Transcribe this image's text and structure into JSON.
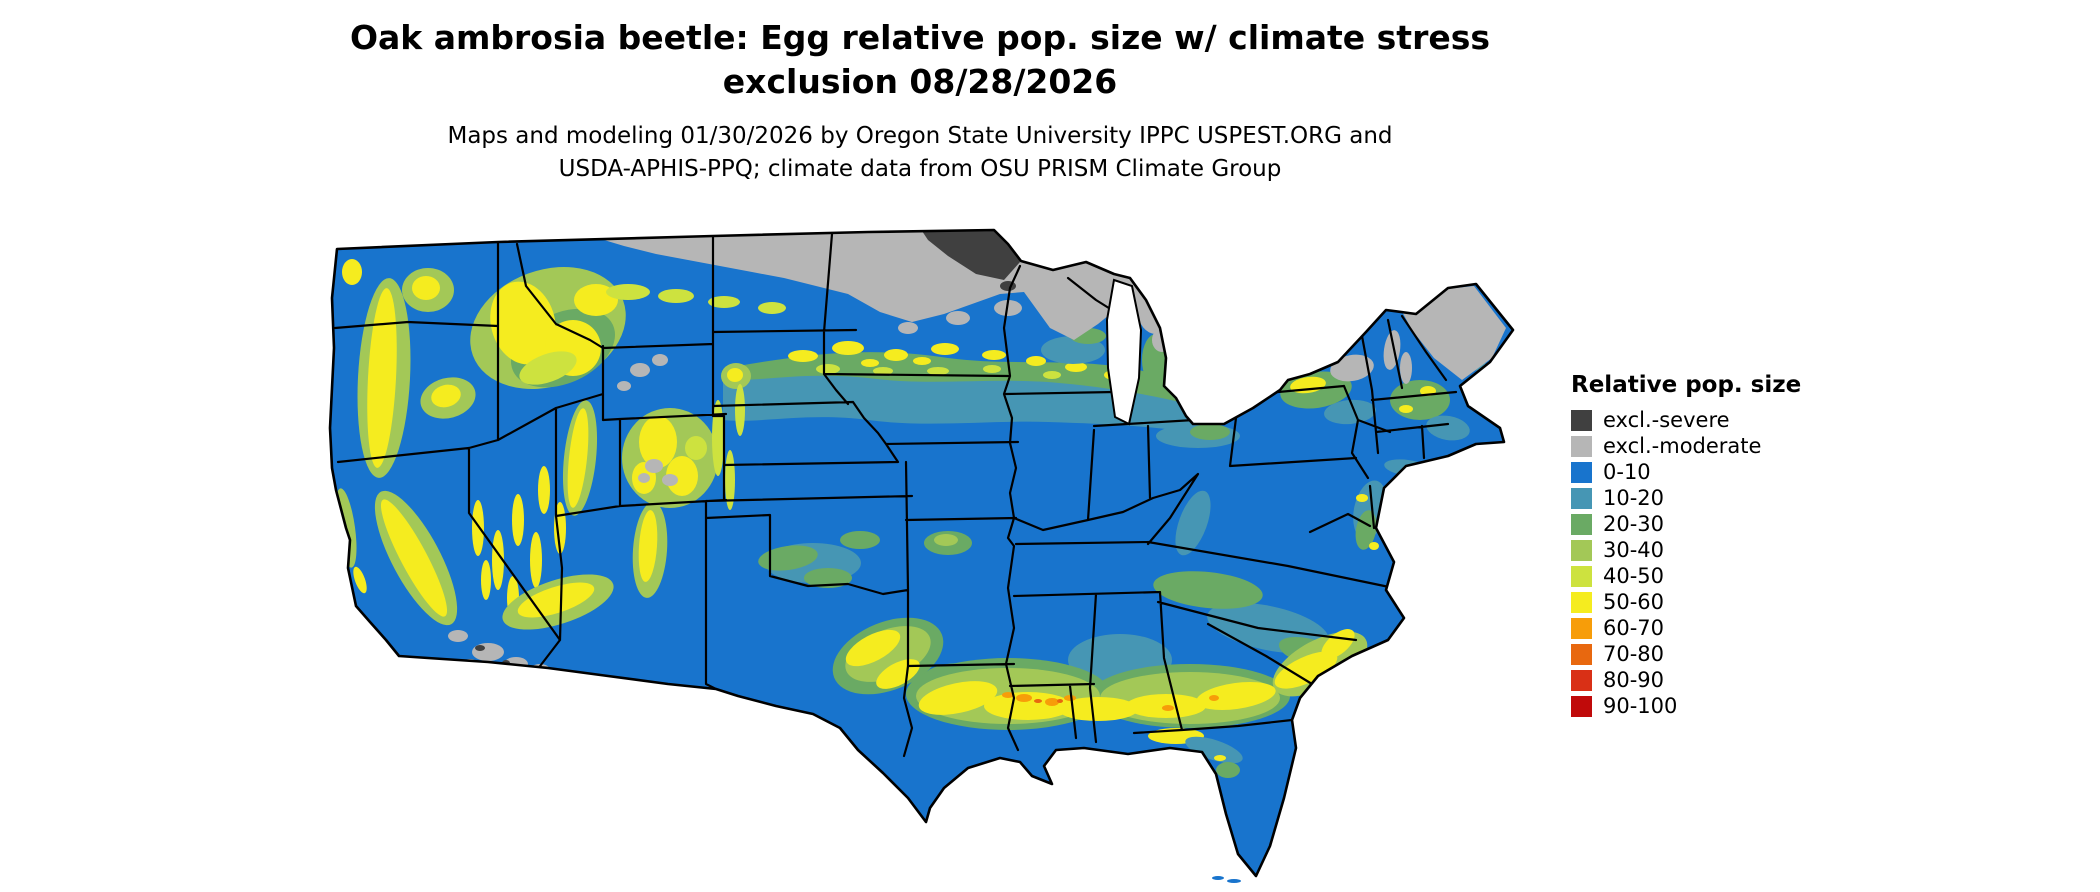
{
  "title": {
    "line1": "Oak ambrosia beetle: Egg relative pop. size w/ climate stress",
    "line2": "exclusion 08/28/2026"
  },
  "subtitle": {
    "line1": "Maps and modeling 01/30/2026 by Oregon State University IPPC USPEST.ORG and",
    "line2": "USDA-APHIS-PPQ; climate data from OSU PRISM Climate Group"
  },
  "legend": {
    "title": "Relative pop. size",
    "items": [
      {
        "label": "excl.-severe",
        "key": "excl_severe"
      },
      {
        "label": "excl.-moderate",
        "key": "excl_moderate"
      },
      {
        "label": "0-10",
        "key": "b0_10"
      },
      {
        "label": "10-20",
        "key": "b10_20"
      },
      {
        "label": "20-30",
        "key": "b20_30"
      },
      {
        "label": "30-40",
        "key": "b30_40"
      },
      {
        "label": "40-50",
        "key": "b40_50"
      },
      {
        "label": "50-60",
        "key": "b50_60"
      },
      {
        "label": "60-70",
        "key": "b60_70"
      },
      {
        "label": "70-80",
        "key": "b70_80"
      },
      {
        "label": "80-90",
        "key": "b80_90"
      },
      {
        "label": "90-100",
        "key": "b90_100"
      }
    ]
  },
  "map": {
    "name": "Contiguous United States relative population size map",
    "background": "#ffffff",
    "border_color": "#000000",
    "palette": {
      "excl_severe": "#404040",
      "excl_moderate": "#b6b6b6",
      "b0_10": "#1874cd",
      "b10_20": "#4696b4",
      "b20_30": "#6aaa64",
      "b30_40": "#a3c857",
      "b40_50": "#cde23f",
      "b50_60": "#f5ec1f",
      "b60_70": "#f79d09",
      "b70_80": "#e8680f",
      "b80_90": "#d93016",
      "b90_100": "#c00a0a"
    }
  }
}
